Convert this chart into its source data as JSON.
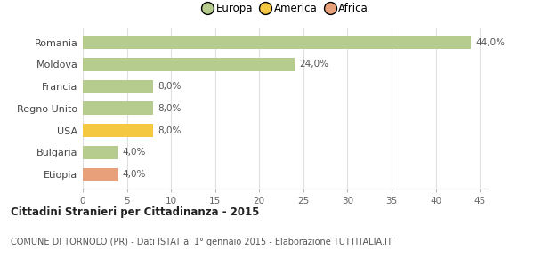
{
  "categories": [
    "Romania",
    "Moldova",
    "Francia",
    "Regno Unito",
    "USA",
    "Bulgaria",
    "Etiopia"
  ],
  "values": [
    44.0,
    24.0,
    8.0,
    8.0,
    8.0,
    4.0,
    4.0
  ],
  "labels": [
    "44,0%",
    "24,0%",
    "8,0%",
    "8,0%",
    "8,0%",
    "4,0%",
    "4,0%"
  ],
  "bar_colors": [
    "#b5cc8e",
    "#b5cc8e",
    "#b5cc8e",
    "#b5cc8e",
    "#f5c842",
    "#b5cc8e",
    "#e8a07a"
  ],
  "legend_items": [
    {
      "label": "Europa",
      "color": "#b5cc8e"
    },
    {
      "label": "America",
      "color": "#f5c842"
    },
    {
      "label": "Africa",
      "color": "#e8a07a"
    }
  ],
  "title": "Cittadini Stranieri per Cittadinanza - 2015",
  "subtitle": "COMUNE DI TORNOLO (PR) - Dati ISTAT al 1° gennaio 2015 - Elaborazione TUTTITALIA.IT",
  "xlim": [
    0,
    46
  ],
  "xticks": [
    0,
    5,
    10,
    15,
    20,
    25,
    30,
    35,
    40,
    45
  ],
  "background_color": "#ffffff",
  "grid_color": "#e0e0e0"
}
